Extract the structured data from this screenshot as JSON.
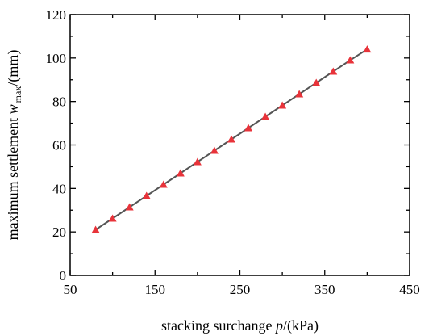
{
  "chart_data": {
    "type": "line",
    "xlabel": {
      "pre": "stacking surchange ",
      "var": "p",
      "post": "/(kPa)"
    },
    "ylabel": {
      "pre": "maximum settlement ",
      "var": "w",
      "sub": "max",
      "post": "/(mm)"
    },
    "xlim": [
      50,
      450
    ],
    "ylim": [
      0,
      120
    ],
    "x_ticks": [
      50,
      150,
      250,
      350,
      450
    ],
    "y_ticks": [
      0,
      20,
      40,
      60,
      80,
      100,
      120
    ],
    "line_color": "#555555",
    "marker_color": "#e8333a",
    "marker": "triangle",
    "x": [
      80,
      100,
      120,
      140,
      160,
      180,
      200,
      220,
      240,
      260,
      280,
      300,
      320,
      340,
      360,
      380,
      400
    ],
    "y": [
      21.0,
      26.2,
      31.4,
      36.6,
      41.8,
      47.0,
      52.2,
      57.4,
      62.6,
      67.8,
      73.0,
      78.2,
      83.4,
      88.6,
      93.8,
      99.0,
      104.0
    ]
  }
}
